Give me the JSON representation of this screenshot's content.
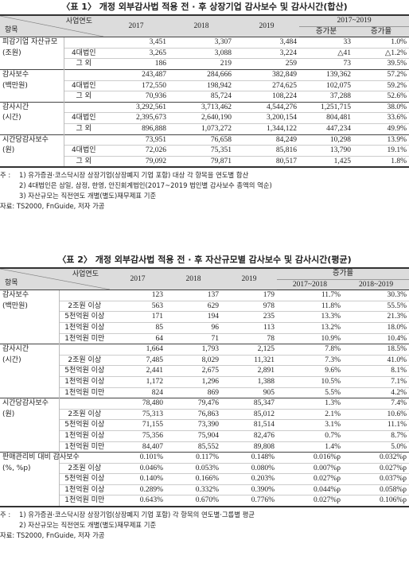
{
  "tables": [
    {
      "title": "〈표 1〉 개정 외부감사법 적용 전 · 후 상장기업 감사보수 및 감사시간(합산)",
      "header": {
        "item": "항목",
        "year": "사업연도",
        "years": [
          "2017",
          "2018",
          "2019"
        ],
        "change_group": "2017~2019",
        "change_cols": [
          "증가분",
          "증가율"
        ]
      },
      "groups": [
        {
          "label": "피감기업 자산규모",
          "unit": "(조원)",
          "total": [
            "3,451",
            "3,307",
            "3,484",
            "33",
            "1.0%"
          ],
          "rows": [
            {
              "label": "4대법인",
              "values": [
                "3,265",
                "3,088",
                "3,224",
                "△41",
                "△1.2%"
              ]
            },
            {
              "label": "그 외",
              "values": [
                "186",
                "219",
                "259",
                "73",
                "39.5%"
              ]
            }
          ]
        },
        {
          "label": "감사보수",
          "unit": "(백만원)",
          "total": [
            "243,487",
            "284,666",
            "382,849",
            "139,362",
            "57.2%"
          ],
          "rows": [
            {
              "label": "4대법인",
              "values": [
                "172,550",
                "198,942",
                "274,625",
                "102,075",
                "59.2%"
              ]
            },
            {
              "label": "그 외",
              "values": [
                "70,936",
                "85,724",
                "108,224",
                "37,288",
                "52.6%"
              ]
            }
          ]
        },
        {
          "label": "감사시간",
          "unit": "(시간)",
          "total": [
            "3,292,561",
            "3,713,462",
            "4,544,276",
            "1,251,715",
            "38.0%"
          ],
          "rows": [
            {
              "label": "4대법인",
              "values": [
                "2,395,673",
                "2,640,190",
                "3,200,154",
                "804,481",
                "33.6%"
              ]
            },
            {
              "label": "그 외",
              "values": [
                "896,888",
                "1,073,272",
                "1,344,122",
                "447,234",
                "49.9%"
              ]
            }
          ]
        },
        {
          "label": "시간당감사보수",
          "unit": "(원)",
          "total": [
            "73,951",
            "76,658",
            "84,249",
            "10,298",
            "13.9%"
          ],
          "rows": [
            {
              "label": "4대법인",
              "values": [
                "72,026",
                "75,351",
                "85,816",
                "13,790",
                "19.1%"
              ]
            },
            {
              "label": "그 외",
              "values": [
                "79,092",
                "79,871",
                "80,517",
                "1,425",
                "1.8%"
              ]
            }
          ]
        }
      ],
      "notes_label": "주 :",
      "notes": [
        "1) 유가증권·코스닥시장 상장기업(상장폐지 기업 포함) 대상 각 항목을 연도별 합산",
        "2) 4대법인은 삼일, 삼정, 한영, 안진회계법인(2017~2019 법인별 감사보수 총액의 역순)",
        "3) 자산규모는 직전연도 개별(별도)재무제표 기준"
      ],
      "source": "자료: TS2000, FnGuide, 저자 가공"
    },
    {
      "title": "〈표 2〉 개정 외부감사법 적용 전 · 후 자산규모별 감사보수 및 감사시간(평균)",
      "header": {
        "item": "항목",
        "year": "사업연도",
        "years": [
          "2017",
          "2018",
          "2019"
        ],
        "change_group": "증가율",
        "change_cols": [
          "2017~2018",
          "2018~2019"
        ]
      },
      "groups": [
        {
          "label": "감사보수",
          "unit": "(백만원)",
          "total": [
            "123",
            "137",
            "179",
            "11.7%",
            "30.3%"
          ],
          "rows": [
            {
              "label": "2조원 이상",
              "values": [
                "563",
                "629",
                "978",
                "11.8%",
                "55.5%"
              ]
            },
            {
              "label": "5천억원 이상",
              "values": [
                "171",
                "194",
                "235",
                "13.3%",
                "21.3%"
              ]
            },
            {
              "label": "1천억원 이상",
              "values": [
                "85",
                "96",
                "113",
                "13.2%",
                "18.0%"
              ]
            },
            {
              "label": "1천억원 미만",
              "values": [
                "64",
                "71",
                "78",
                "10.9%",
                "10.4%"
              ]
            }
          ]
        },
        {
          "label": "감사시간",
          "unit": "(시간)",
          "total": [
            "1,664",
            "1,793",
            "2,125",
            "7.8%",
            "18.5%"
          ],
          "rows": [
            {
              "label": "2조원 이상",
              "values": [
                "7,485",
                "8,029",
                "11,321",
                "7.3%",
                "41.0%"
              ]
            },
            {
              "label": "5천억원 이상",
              "values": [
                "2,441",
                "2,675",
                "2,891",
                "9.6%",
                "8.1%"
              ]
            },
            {
              "label": "1천억원 이상",
              "values": [
                "1,172",
                "1,296",
                "1,388",
                "10.5%",
                "7.1%"
              ]
            },
            {
              "label": "1천억원 미만",
              "values": [
                "824",
                "869",
                "905",
                "5.5%",
                "4.2%"
              ]
            }
          ]
        },
        {
          "label": "시간당감사보수",
          "unit": "(원)",
          "total": [
            "78,480",
            "79,476",
            "85,347",
            "1.3%",
            "7.4%"
          ],
          "rows": [
            {
              "label": "2조원 이상",
              "values": [
                "75,313",
                "76,863",
                "85,012",
                "2.1%",
                "10.6%"
              ]
            },
            {
              "label": "5천억원 이상",
              "values": [
                "71,155",
                "73,390",
                "81,514",
                "3.1%",
                "11.1%"
              ]
            },
            {
              "label": "1천억원 이상",
              "values": [
                "75,356",
                "75,904",
                "82,476",
                "0.7%",
                "8.7%"
              ]
            },
            {
              "label": "1천억원 미만",
              "values": [
                "84,407",
                "85,552",
                "89,808",
                "1.4%",
                "5.0%"
              ]
            }
          ]
        },
        {
          "label": "판매관리비 대비 감사보수",
          "unit": "(%, %p)",
          "total": [
            "0.101%",
            "0.117%",
            "0.148%",
            "0.016%p",
            "0.032%p"
          ],
          "rows": [
            {
              "label": "2조원 이상",
              "values": [
                "0.046%",
                "0.053%",
                "0.080%",
                "0.007%p",
                "0.027%p"
              ]
            },
            {
              "label": "5천억원 이상",
              "values": [
                "0.140%",
                "0.166%",
                "0.203%",
                "0.027%p",
                "0.037%p"
              ]
            },
            {
              "label": "1천억원 이상",
              "values": [
                "0.289%",
                "0.332%",
                "0.390%",
                "0.044%p",
                "0.058%p"
              ]
            },
            {
              "label": "1천억원 미만",
              "values": [
                "0.643%",
                "0.670%",
                "0.776%",
                "0.027%p",
                "0.106%p"
              ]
            }
          ]
        }
      ],
      "notes_label": "주 :",
      "notes": [
        "1) 유가증권·코스닥시장 상장기업(상장폐지 기업 포함) 각 항목의 연도별·그룹별 평균",
        "2) 자산규모는 직전연도 개별(별도)재무제표 기준"
      ],
      "source": "자료: TS2000, FnGuide, 저자 가공"
    }
  ]
}
